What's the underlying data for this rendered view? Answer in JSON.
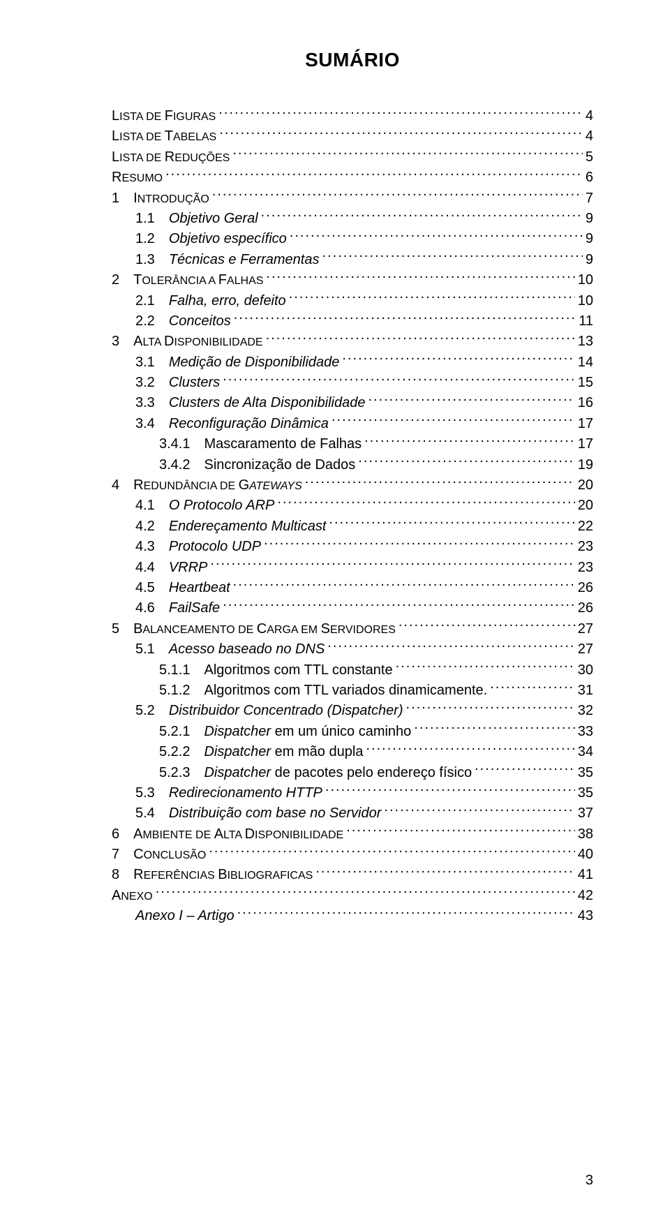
{
  "title": "SUMÁRIO",
  "page_number": "3",
  "typography": {
    "title_fontsize": 28,
    "body_fontsize": 20,
    "line_height": 1.47,
    "font_family": "Arial"
  },
  "colors": {
    "text": "#000000",
    "background": "#ffffff"
  },
  "toc": [
    {
      "label_prefix": "L",
      "label_rest": "ISTA DE ",
      "label_prefix2": "F",
      "label_rest2": "IGURAS",
      "page": "4",
      "indent": 0,
      "style": "smallcaps"
    },
    {
      "label_prefix": "L",
      "label_rest": "ISTA DE ",
      "label_prefix2": "T",
      "label_rest2": "ABELAS",
      "page": "4",
      "indent": 0,
      "style": "smallcaps"
    },
    {
      "label_prefix": "L",
      "label_rest": "ISTA DE ",
      "label_prefix2": "R",
      "label_rest2": "EDUÇÕES",
      "page": "5",
      "indent": 0,
      "style": "smallcaps"
    },
    {
      "label_prefix": "R",
      "label_rest": "ESUMO",
      "page": "6",
      "indent": 0,
      "style": "smallcaps"
    },
    {
      "num": "1",
      "label_prefix": "I",
      "label_rest": "NTRODUÇÃO",
      "page": "7",
      "indent": 0,
      "style": "smallcaps"
    },
    {
      "num": "1.1",
      "label": "Objetivo Geral",
      "page": "9",
      "indent": 1,
      "style": "italic"
    },
    {
      "num": "1.2",
      "label": "Objetivo específico",
      "page": "9",
      "indent": 1,
      "style": "italic"
    },
    {
      "num": "1.3",
      "label": "Técnicas e Ferramentas",
      "page": "9",
      "indent": 1,
      "style": "italic"
    },
    {
      "num": "2",
      "label_prefix": "T",
      "label_rest": "OLERÂNCIA A ",
      "label_prefix2": "F",
      "label_rest2": "ALHAS",
      "page": "10",
      "indent": 0,
      "style": "smallcaps"
    },
    {
      "num": "2.1",
      "label": "Falha, erro, defeito",
      "page": "10",
      "indent": 1,
      "style": "italic"
    },
    {
      "num": "2.2",
      "label": "Conceitos",
      "page": "11",
      "indent": 1,
      "style": "italic"
    },
    {
      "num": "3",
      "label_prefix": "A",
      "label_rest": "LTA ",
      "label_prefix2": "D",
      "label_rest2": "ISPONIBILIDADE",
      "page": "13",
      "indent": 0,
      "style": "smallcaps"
    },
    {
      "num": "3.1",
      "label": "Medição de Disponibilidade",
      "page": "14",
      "indent": 1,
      "style": "italic"
    },
    {
      "num": "3.2",
      "label": "Clusters",
      "page": "15",
      "indent": 1,
      "style": "italic"
    },
    {
      "num": "3.3",
      "label": "Clusters de Alta Disponibilidade",
      "page": "16",
      "indent": 1,
      "style": "italic"
    },
    {
      "num": "3.4",
      "label": "Reconfiguração Dinâmica",
      "page": "17",
      "indent": 1,
      "style": "italic"
    },
    {
      "num": "3.4.1",
      "label": "Mascaramento de Falhas",
      "page": "17",
      "indent": 2,
      "style": "plain"
    },
    {
      "num": "3.4.2",
      "label": "Sincronização de Dados",
      "page": "19",
      "indent": 2,
      "style": "plain"
    },
    {
      "num": "4",
      "label_prefix": "R",
      "label_rest": "EDUNDÂNCIA DE ",
      "label_prefix2": "G",
      "label_rest2": "ATEWAYS",
      "page": "20",
      "indent": 0,
      "style": "smallcaps-italic"
    },
    {
      "num": "4.1",
      "label": "O Protocolo ARP",
      "page": "20",
      "indent": 1,
      "style": "italic"
    },
    {
      "num": "4.2",
      "label": "Endereçamento Multicast",
      "page": "22",
      "indent": 1,
      "style": "italic"
    },
    {
      "num": "4.3",
      "label": "Protocolo UDP",
      "page": "23",
      "indent": 1,
      "style": "italic"
    },
    {
      "num": "4.4",
      "label": "VRRP",
      "page": "23",
      "indent": 1,
      "style": "italic"
    },
    {
      "num": "4.5",
      "label": "Heartbeat",
      "page": "26",
      "indent": 1,
      "style": "italic"
    },
    {
      "num": "4.6",
      "label": "FailSafe",
      "page": "26",
      "indent": 1,
      "style": "italic"
    },
    {
      "num": "5",
      "label_prefix": "B",
      "label_rest": "ALANCEAMENTO DE ",
      "label_prefix2": "C",
      "label_rest2": "ARGA EM ",
      "label_prefix3": "S",
      "label_rest3": "ERVIDORES",
      "page": "27",
      "indent": 0,
      "style": "smallcaps"
    },
    {
      "num": "5.1",
      "label": "Acesso baseado no DNS",
      "page": "27",
      "indent": 1,
      "style": "italic"
    },
    {
      "num": "5.1.1",
      "label": "Algoritmos com TTL constante",
      "page": "30",
      "indent": 2,
      "style": "plain"
    },
    {
      "num": "5.1.2",
      "label": "Algoritmos com TTL variados dinamicamente.",
      "page": "31",
      "indent": 2,
      "style": "plain"
    },
    {
      "num": "5.2",
      "label": "Distribuidor Concentrado (Dispatcher)",
      "page": "32",
      "indent": 1,
      "style": "italic"
    },
    {
      "num": "5.2.1",
      "label_italic": "Dispatcher",
      "label_after": " em um único caminho",
      "page": "33",
      "indent": 2,
      "style": "mixed"
    },
    {
      "num": "5.2.2",
      "label_italic": "Dispatcher",
      "label_after": " em mão dupla",
      "page": "34",
      "indent": 2,
      "style": "mixed"
    },
    {
      "num": "5.2.3",
      "label_italic": "Dispatcher",
      "label_after": " de pacotes pelo endereço físico",
      "page": "35",
      "indent": 2,
      "style": "mixed"
    },
    {
      "num": "5.3",
      "label": "Redirecionamento HTTP",
      "page": "35",
      "indent": 1,
      "style": "italic"
    },
    {
      "num": "5.4",
      "label": "Distribuição com base no Servidor",
      "page": "37",
      "indent": 1,
      "style": "italic"
    },
    {
      "num": "6",
      "label_prefix": "A",
      "label_rest": "MBIENTE DE ",
      "label_prefix2": "A",
      "label_rest2": "LTA ",
      "label_prefix3": "D",
      "label_rest3": "ISPONIBILIDADE",
      "page": "38",
      "indent": 0,
      "style": "smallcaps"
    },
    {
      "num": "7",
      "label_prefix": "C",
      "label_rest": "ONCLUSÃO",
      "page": "40",
      "indent": 0,
      "style": "smallcaps"
    },
    {
      "num": "8",
      "label_prefix": "R",
      "label_rest": "EFERÊNCIAS ",
      "label_prefix2": "B",
      "label_rest2": "IBLIOGRAFICAS",
      "page": "41",
      "indent": 0,
      "style": "smallcaps"
    },
    {
      "label_prefix": "A",
      "label_rest": "NEXO",
      "page": "42",
      "indent": 0,
      "style": "smallcaps"
    },
    {
      "label": "Anexo I – Artigo",
      "page": "43",
      "indent": 1,
      "style": "italic"
    }
  ]
}
